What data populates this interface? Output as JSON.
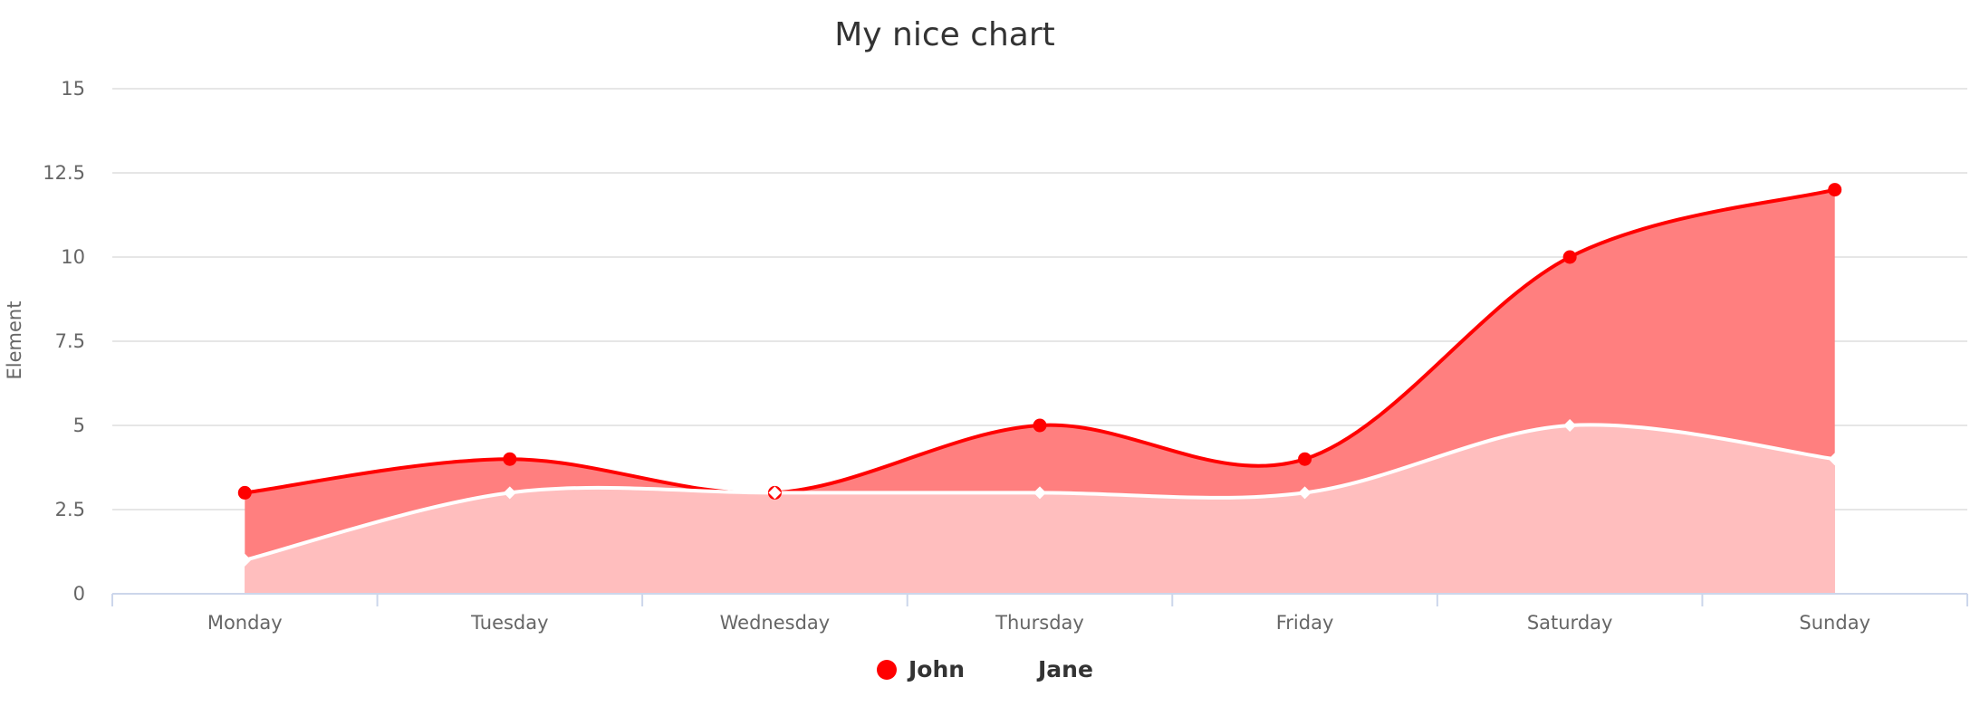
{
  "chart_data": {
    "type": "area",
    "title": "My nice chart",
    "xlabel": "",
    "ylabel": "Element",
    "categories": [
      "Monday",
      "Tuesday",
      "Wednesday",
      "Thursday",
      "Friday",
      "Saturday",
      "Sunday"
    ],
    "ylim": [
      0,
      15
    ],
    "yticks": [
      "0",
      "2.5",
      "5",
      "7.5",
      "10",
      "12.5",
      "15"
    ],
    "grid": true,
    "legend_position": "bottom-center",
    "series": [
      {
        "name": "John",
        "values": [
          3,
          4,
          3,
          5,
          4,
          10,
          12
        ],
        "color": "#ff0000",
        "fill": "#ff7f7f",
        "marker": "circle"
      },
      {
        "name": "Jane",
        "values": [
          1,
          3,
          3,
          3,
          3,
          5,
          4
        ],
        "color": "#ffffff",
        "fill": "#ffbebe",
        "marker": "diamond"
      }
    ]
  }
}
